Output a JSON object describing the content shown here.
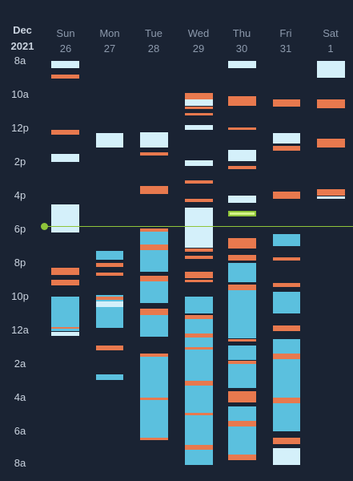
{
  "calendar": {
    "month": "Dec",
    "year": "2021",
    "days": [
      {
        "weekday": "Sun",
        "date": "26"
      },
      {
        "weekday": "Mon",
        "date": "27"
      },
      {
        "weekday": "Tue",
        "date": "28"
      },
      {
        "weekday": "Wed",
        "date": "29"
      },
      {
        "weekday": "Thu",
        "date": "30"
      },
      {
        "weekday": "Fri",
        "date": "31"
      },
      {
        "weekday": "Sat",
        "date": "1"
      }
    ],
    "hours": [
      "8a",
      "10a",
      "12p",
      "2p",
      "4p",
      "6p",
      "8p",
      "10p",
      "12a",
      "2a",
      "4a",
      "6a",
      "8a"
    ]
  },
  "colors": {
    "background": "#1a2333",
    "sleep": "#5bc0de",
    "awake": "#e8794e",
    "light": "#d4f0fa",
    "now_line": "#8fc43a"
  },
  "legend_note": "",
  "events": {
    "sun": [
      [
        "light",
        8.0,
        8.45
      ],
      [
        "awake",
        8.8,
        9.05
      ],
      [
        "awake",
        12.1,
        12.4
      ],
      [
        "light",
        13.5,
        14.0
      ],
      [
        "light",
        16.5,
        18.2
      ],
      [
        "awake",
        20.3,
        20.7
      ],
      [
        "awake",
        21.0,
        21.35
      ],
      [
        "sleep",
        22.0,
        23.8
      ],
      [
        "awake",
        23.8,
        23.9
      ],
      [
        "sleep",
        23.9,
        24.05
      ],
      [
        "light",
        24.1,
        24.35
      ]
    ],
    "mon": [
      [
        "light",
        12.3,
        13.15
      ],
      [
        "sleep",
        19.3,
        19.8
      ],
      [
        "awake",
        20.0,
        20.25
      ],
      [
        "awake",
        20.55,
        20.75
      ],
      [
        "sleep",
        21.9,
        22.3
      ],
      [
        "awake",
        22.0,
        22.2
      ],
      [
        "light",
        22.3,
        22.6
      ],
      [
        "sleep",
        22.6,
        23.85
      ],
      [
        "awake",
        24.9,
        25.2
      ],
      [
        "sleep",
        26.6,
        26.95
      ]
    ],
    "tue": [
      [
        "light",
        12.25,
        13.15
      ],
      [
        "awake",
        13.45,
        13.6
      ],
      [
        "awake",
        15.45,
        15.9
      ],
      [
        "awake",
        17.95,
        18.15
      ],
      [
        "sleep",
        18.15,
        18.9
      ],
      [
        "awake",
        18.9,
        19.25
      ],
      [
        "sleep",
        19.25,
        20.5
      ],
      [
        "awake",
        20.75,
        21.1
      ],
      [
        "sleep",
        21.1,
        22.4
      ],
      [
        "awake",
        22.7,
        23.1
      ],
      [
        "sleep",
        23.1,
        24.4
      ],
      [
        "awake",
        25.4,
        25.55
      ],
      [
        "sleep",
        25.55,
        28.0
      ],
      [
        "awake",
        28.0,
        28.15
      ],
      [
        "sleep",
        28.15,
        30.4
      ],
      [
        "awake",
        30.4,
        30.5
      ]
    ],
    "wed": [
      [
        "awake",
        9.9,
        10.3
      ],
      [
        "light",
        10.3,
        10.65
      ],
      [
        "awake",
        10.7,
        10.85
      ],
      [
        "awake",
        11.1,
        11.25
      ],
      [
        "light",
        11.8,
        12.1
      ],
      [
        "light",
        13.9,
        14.25
      ],
      [
        "awake",
        15.1,
        15.3
      ],
      [
        "awake",
        16.2,
        16.4
      ],
      [
        "light",
        16.7,
        19.1
      ],
      [
        "awake",
        19.15,
        19.35
      ],
      [
        "awake",
        19.55,
        19.75
      ],
      [
        "awake",
        20.5,
        20.9
      ],
      [
        "awake",
        21.0,
        21.15
      ],
      [
        "sleep",
        22.0,
        23.0
      ],
      [
        "awake",
        23.1,
        23.35
      ],
      [
        "sleep",
        23.35,
        24.2
      ],
      [
        "awake",
        24.2,
        24.45
      ],
      [
        "sleep",
        24.45,
        25.0
      ],
      [
        "awake",
        25.0,
        25.15
      ],
      [
        "sleep",
        25.15,
        27.0
      ],
      [
        "awake",
        27.0,
        27.3
      ],
      [
        "sleep",
        27.3,
        28.9
      ],
      [
        "awake",
        28.9,
        29.05
      ],
      [
        "sleep",
        29.05,
        30.8
      ],
      [
        "awake",
        30.8,
        31.1
      ],
      [
        "sleep",
        31.1,
        32.0
      ]
    ],
    "thu": [
      [
        "light",
        8.0,
        8.45
      ],
      [
        "awake",
        10.1,
        10.65
      ],
      [
        "awake",
        11.95,
        12.05
      ],
      [
        "light",
        13.3,
        13.95
      ],
      [
        "awake",
        14.25,
        14.45
      ],
      [
        "light",
        16.0,
        16.45
      ],
      [
        "light",
        16.95,
        17.2
      ],
      [
        "awake",
        18.5,
        19.15
      ],
      [
        "awake",
        19.5,
        19.85
      ],
      [
        "sleep",
        20.0,
        21.15
      ],
      [
        "awake",
        21.3,
        21.6
      ],
      [
        "sleep",
        21.6,
        24.5
      ],
      [
        "awake",
        24.5,
        24.65
      ],
      [
        "sleep",
        24.9,
        25.75
      ],
      [
        "awake",
        25.8,
        26.0
      ],
      [
        "sleep",
        26.0,
        27.45
      ],
      [
        "awake",
        27.6,
        27.9
      ],
      [
        "awake",
        27.9,
        28.3
      ],
      [
        "sleep",
        28.5,
        29.4
      ],
      [
        "awake",
        29.4,
        29.7
      ],
      [
        "sleep",
        29.7,
        31.4
      ],
      [
        "awake",
        31.4,
        31.7
      ]
    ],
    "fri": [
      [
        "awake",
        10.3,
        10.7
      ],
      [
        "light",
        12.3,
        12.9
      ],
      [
        "awake",
        13.05,
        13.35
      ],
      [
        "awake",
        15.75,
        16.2
      ],
      [
        "sleep",
        18.3,
        19.0
      ],
      [
        "awake",
        19.65,
        19.85
      ],
      [
        "awake",
        21.2,
        21.45
      ],
      [
        "sleep",
        21.7,
        23.0
      ],
      [
        "awake",
        23.7,
        24.05
      ],
      [
        "sleep",
        24.5,
        25.4
      ],
      [
        "awake",
        25.4,
        25.7
      ],
      [
        "sleep",
        25.7,
        28.0
      ],
      [
        "awake",
        28.0,
        28.35
      ],
      [
        "sleep",
        28.35,
        30.0
      ],
      [
        "awake",
        30.4,
        30.75
      ],
      [
        "light",
        31.0,
        32.0
      ]
    ],
    "sat": [
      [
        "light",
        8.0,
        9.0
      ],
      [
        "awake",
        10.3,
        10.8
      ],
      [
        "awake",
        12.6,
        13.15
      ],
      [
        "awake",
        15.6,
        16.0
      ],
      [
        "light",
        16.05,
        16.2
      ]
    ]
  }
}
